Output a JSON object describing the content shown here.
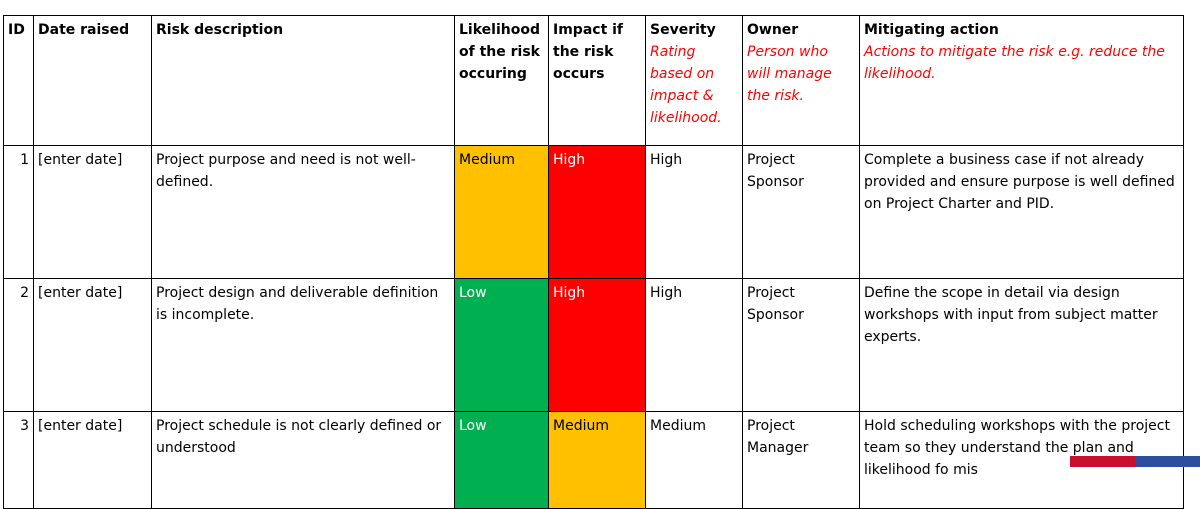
{
  "header": {
    "id": "ID",
    "date_raised": "Date raised",
    "risk_description": "Risk description",
    "likelihood": "Likelihood of the risk occuring",
    "impact": "Impact if the risk occurs",
    "severity": "Severity",
    "severity_hint": "Rating based on impact & likelihood.",
    "owner": "Owner",
    "owner_hint": "Person who will manage the risk.",
    "mitigating_action": "Mitigating action",
    "mitigating_hint": "Actions to mitigate the risk e.g. reduce the likelihood."
  },
  "rows": [
    {
      "id": "1",
      "date": "[enter date]",
      "description": "Project purpose and need is not well-defined.",
      "likelihood": "Medium",
      "impact": "High",
      "severity": "High",
      "owner": "Project Sponsor",
      "action": "Complete a business case if not already provided and ensure purpose is well defined on Project Charter and PID."
    },
    {
      "id": "2",
      "date": "[enter date]",
      "description": "Project design and deliverable definition is incomplete.",
      "likelihood": "Low",
      "impact": "High",
      "severity": "High",
      "owner": "Project Sponsor",
      "action": "Define the scope in detail via design workshops with input from subject matter experts."
    },
    {
      "id": "3",
      "date": "[enter date]",
      "description": "Project schedule is not clearly defined or understood",
      "likelihood": "Low",
      "impact": "Medium",
      "severity": "Medium",
      "owner": "Project Manager",
      "action": "Hold scheduling workshops with the project team so they understand the plan and likelihood fo mis"
    }
  ],
  "level_colors": {
    "High": "#ff0000",
    "Medium": "#ffc000",
    "Low": "#00b050"
  },
  "logo_colors": [
    "#c8102e",
    "#2b4f9e"
  ]
}
